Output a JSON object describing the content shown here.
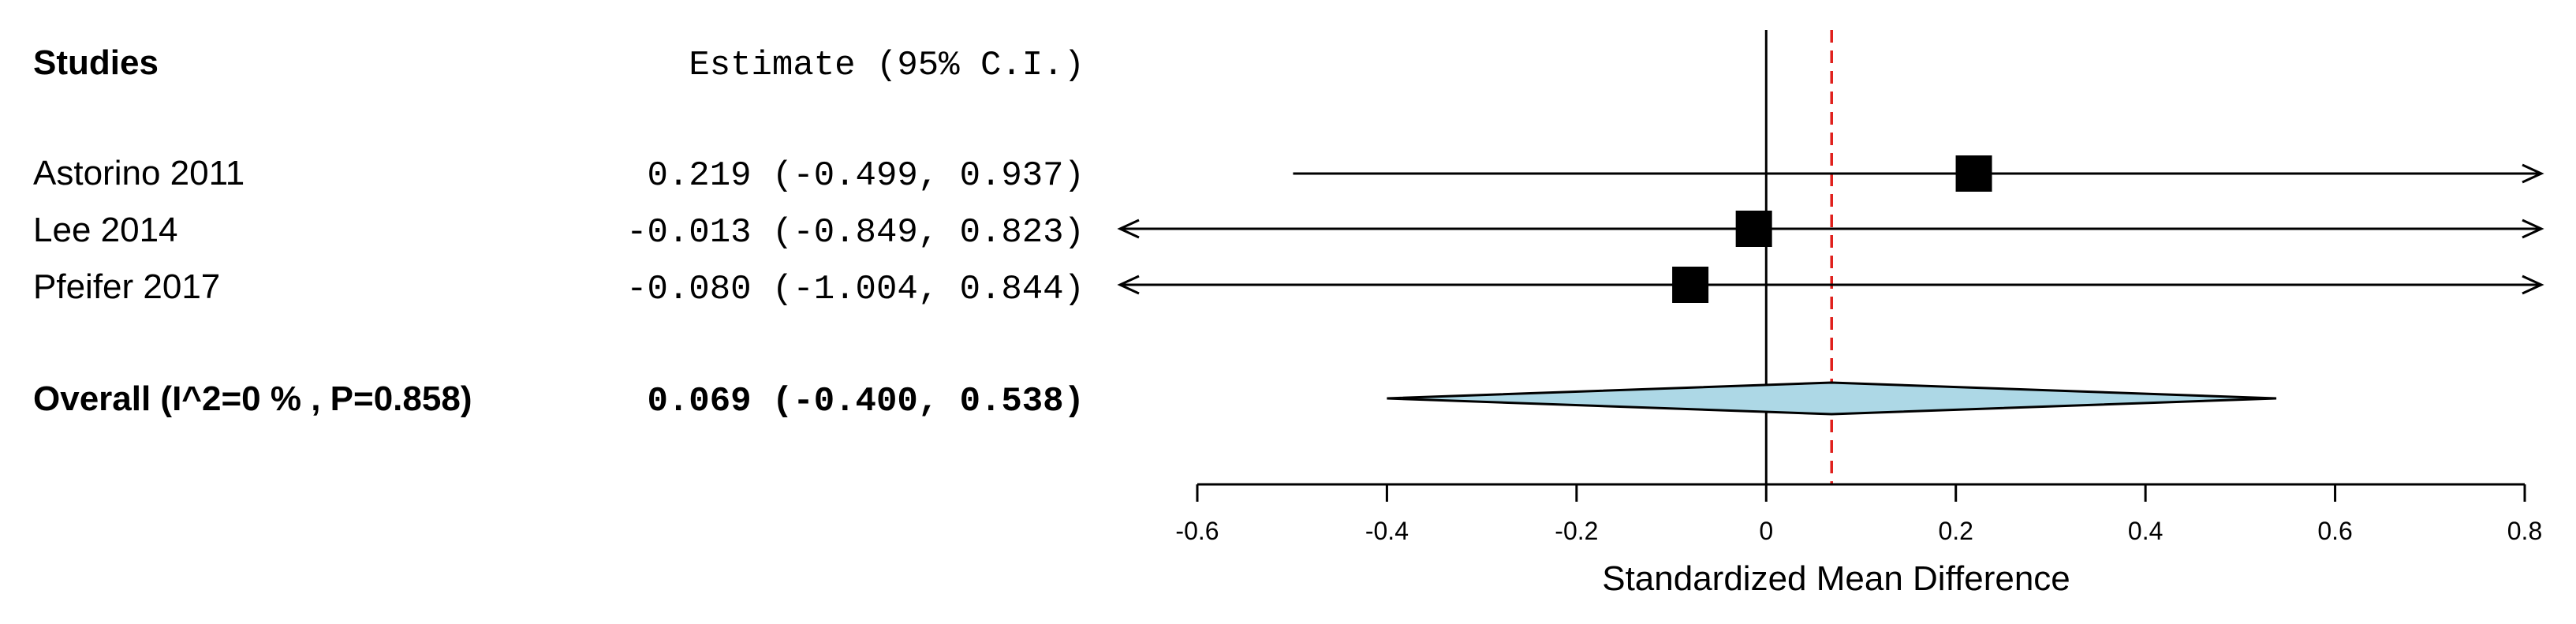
{
  "chart_data": {
    "type": "forest",
    "header": {
      "studies": "Studies",
      "estimate": "Estimate (95% C.I.)"
    },
    "studies": [
      {
        "label": "Astorino 2011",
        "estimate": 0.219,
        "lower": -0.499,
        "upper": 0.937,
        "text": "0.219 (-0.499, 0.937)"
      },
      {
        "label": "Lee 2014",
        "estimate": -0.013,
        "lower": -0.849,
        "upper": 0.823,
        "text": "-0.013 (-0.849, 0.823)"
      },
      {
        "label": "Pfeifer 2017",
        "estimate": -0.08,
        "lower": -1.004,
        "upper": 0.844,
        "text": "-0.080 (-1.004, 0.844)"
      }
    ],
    "overall": {
      "label": "Overall (I^2=0 % , P=0.858)",
      "estimate": 0.069,
      "lower": -0.4,
      "upper": 0.538,
      "text": "0.069 (-0.400, 0.538)"
    },
    "xlabel": "Standardized Mean Difference",
    "xlim": [
      -0.6,
      0.8
    ],
    "xticks": [
      -0.6,
      -0.4,
      -0.2,
      0,
      0.2,
      0.4,
      0.6,
      0.8
    ],
    "xtick_labels": [
      "-0.6",
      "-0.4",
      "-0.2",
      "0",
      "0.2",
      "0.4",
      "0.6",
      "0.8"
    ],
    "null_line": 0,
    "summary_line": 0.069,
    "colors": {
      "diamond_fill": "#add8e6",
      "summary_line": "#e0201c",
      "ink": "#000000"
    }
  }
}
